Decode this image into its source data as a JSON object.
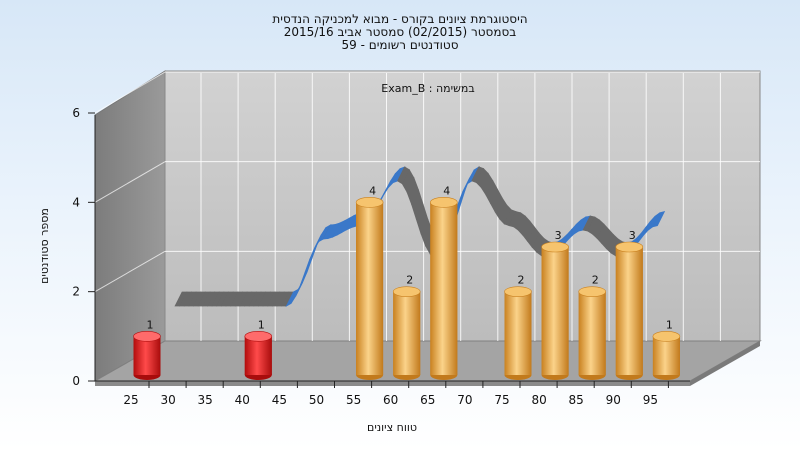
{
  "chart_data": {
    "type": "bar",
    "title_lines": [
      "היסטוגרמת ציונים בקורס - מבוא למכניקה הנדסית",
      "בסמסטר  (02/2015)  סמסטר אביב 2015/16",
      "סטודנטים רשומים - 59"
    ],
    "subtitle": "Exam_B : במשימה",
    "xlabel": "טווח ציונים",
    "ylabel": "מספר סטודנטים",
    "ylim": [
      0,
      6
    ],
    "y_ticks": [
      "0",
      "2",
      "4",
      "6"
    ],
    "x_ticks": [
      "25",
      "30",
      "35",
      "40",
      "45",
      "50",
      "55",
      "60",
      "65",
      "70",
      "75",
      "80",
      "85",
      "90",
      "95"
    ],
    "bars": [
      {
        "x": 25,
        "value": 1,
        "label": "1",
        "color": "#e01b1b"
      },
      {
        "x": 40,
        "value": 1,
        "label": "1",
        "color": "#e01b1b"
      },
      {
        "x": 55,
        "value": 4,
        "label": "4",
        "color": "#e8a23c"
      },
      {
        "x": 60,
        "value": 2,
        "label": "2",
        "color": "#e8a23c"
      },
      {
        "x": 65,
        "value": 4,
        "label": "4",
        "color": "#e8a23c"
      },
      {
        "x": 75,
        "value": 2,
        "label": "2",
        "color": "#e8a23c"
      },
      {
        "x": 80,
        "value": 3,
        "label": "3",
        "color": "#e8a23c"
      },
      {
        "x": 85,
        "value": 2,
        "label": "2",
        "color": "#e8a23c"
      },
      {
        "x": 90,
        "value": 3,
        "label": "3",
        "color": "#e8a23c"
      },
      {
        "x": 95,
        "value": 1,
        "label": "1",
        "color": "#e8a23c"
      }
    ],
    "trend_ribbon": {
      "x": [
        30,
        35,
        40,
        45,
        50,
        55,
        60,
        65,
        70,
        75,
        80,
        85,
        90,
        95
      ],
      "values": [
        1.5,
        1.5,
        1.5,
        1.5,
        3.0,
        3.3,
        4.3,
        2.6,
        4.3,
        3.3,
        2.6,
        3.2,
        2.6,
        3.3
      ],
      "colors": {
        "rising": "#3a78c9",
        "falling": "#686868"
      }
    },
    "colors": {
      "back_wall": "#c6c6c6",
      "side_wall": "#8d8d8d",
      "floor": "#a4a4a4",
      "grid": "#ffffff"
    },
    "grid": true,
    "legend": "none"
  }
}
